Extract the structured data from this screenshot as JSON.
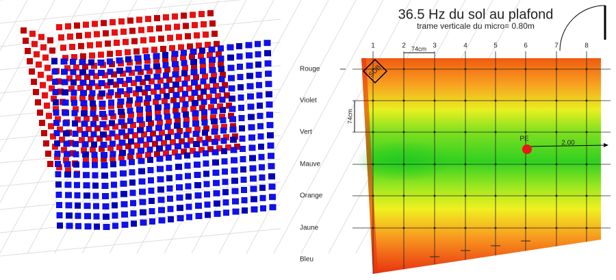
{
  "rows": [
    "Rouge",
    "Violet",
    "Vert",
    "Mauve",
    "Orange",
    "Jaune",
    "Bleu"
  ],
  "plan": {
    "title": "36.5 Hz du sol au plafond",
    "subtitle": "trame verticale du micro= 0.80m",
    "columns": [
      "1",
      "2",
      "3",
      "4",
      "5",
      "6",
      "7",
      "8"
    ],
    "spacing_h": "74cm",
    "spacing_v": "74cm",
    "sub": "SUB",
    "pe": "PE",
    "distance": "2.00"
  }
}
